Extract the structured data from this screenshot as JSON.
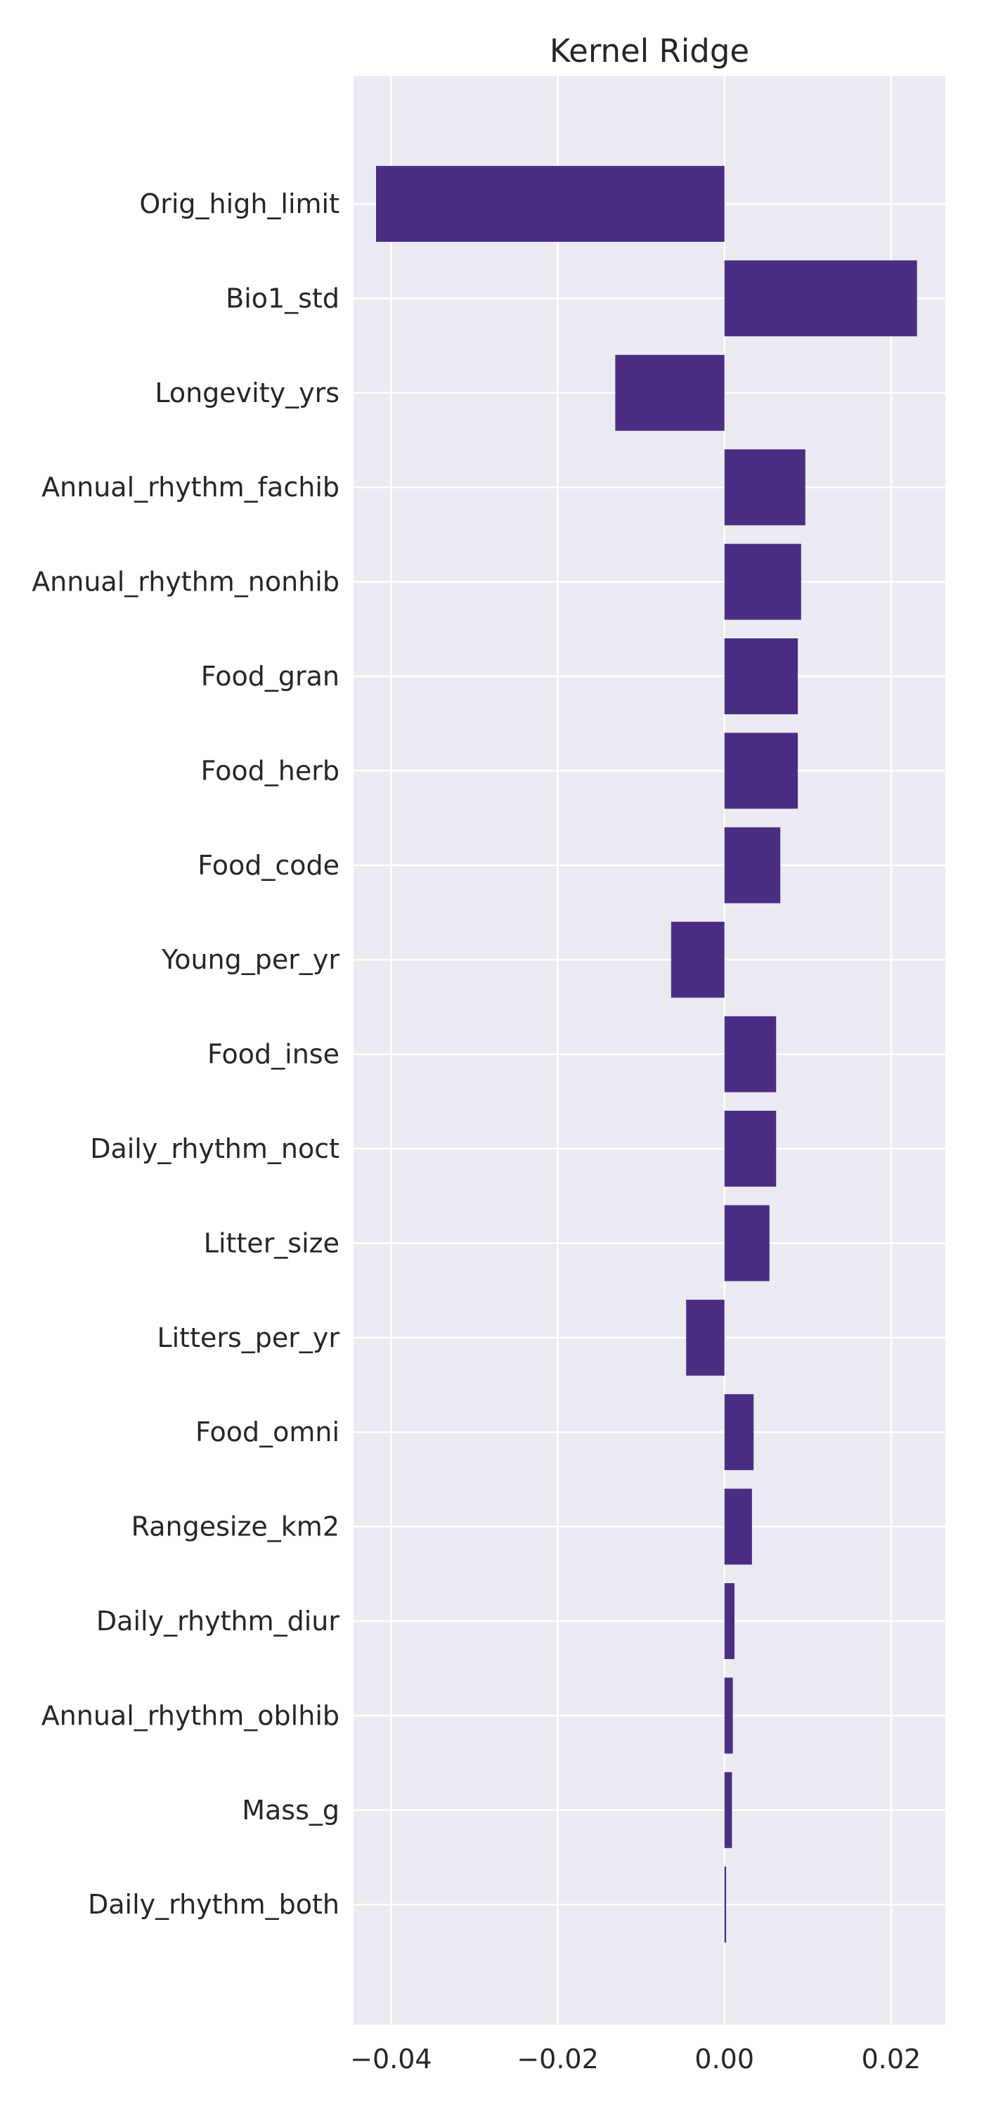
{
  "chart_data": {
    "type": "bar",
    "orientation": "horizontal",
    "title": "Kernel Ridge",
    "xlabel": "",
    "ylabel": "",
    "xlim": [
      -0.0445,
      0.0265
    ],
    "x_ticks": [
      -0.04,
      -0.02,
      0.0,
      0.02
    ],
    "x_tick_labels": [
      "−0.04",
      "−0.02",
      "0.00",
      "0.02"
    ],
    "grid": true,
    "background": "#eaeaf2",
    "bar_color": "#4b2e83",
    "categories": [
      "Orig_high_limit",
      "Bio1_std",
      "Longevity_yrs",
      "Annual_rhythm_fachib",
      "Annual_rhythm_nonhib",
      "Food_gran",
      "Food_herb",
      "Food_code",
      "Young_per_yr",
      "Food_inse",
      "Daily_rhythm_noct",
      "Litter_size",
      "Litters_per_yr",
      "Food_omni",
      "Rangesize_km2",
      "Daily_rhythm_diur",
      "Annual_rhythm_oblhib",
      "Mass_g",
      "Daily_rhythm_both"
    ],
    "values": [
      -0.0418,
      0.0231,
      -0.0131,
      0.0097,
      0.0092,
      0.0088,
      0.0088,
      0.0067,
      -0.0064,
      0.0062,
      0.0062,
      0.0054,
      -0.0046,
      0.0035,
      0.0033,
      0.0012,
      0.001,
      0.0009,
      0.0002
    ]
  }
}
